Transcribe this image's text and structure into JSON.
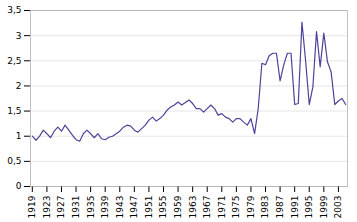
{
  "chart_data": {
    "type": "line",
    "x": [
      1919,
      1920,
      1921,
      1922,
      1923,
      1924,
      1925,
      1926,
      1927,
      1928,
      1929,
      1930,
      1931,
      1932,
      1933,
      1934,
      1935,
      1936,
      1937,
      1938,
      1939,
      1940,
      1941,
      1942,
      1943,
      1944,
      1945,
      1946,
      1947,
      1948,
      1949,
      1950,
      1951,
      1952,
      1953,
      1954,
      1955,
      1956,
      1957,
      1958,
      1959,
      1960,
      1961,
      1962,
      1963,
      1964,
      1965,
      1966,
      1967,
      1968,
      1969,
      1970,
      1971,
      1972,
      1973,
      1974,
      1975,
      1976,
      1977,
      1978,
      1979,
      1980,
      1981,
      1982,
      1983,
      1984,
      1985,
      1986,
      1987,
      1988,
      1989,
      1990,
      1991,
      1992,
      1993,
      1994,
      1995,
      1996,
      1997,
      1998,
      1999,
      2000,
      2001,
      2002,
      2003,
      2004,
      2005
    ],
    "values": [
      1.0,
      0.92,
      1.0,
      1.12,
      1.05,
      0.97,
      1.1,
      1.18,
      1.1,
      1.22,
      1.12,
      1.02,
      0.93,
      0.9,
      1.05,
      1.12,
      1.05,
      0.97,
      1.05,
      0.95,
      0.93,
      0.98,
      1.0,
      1.05,
      1.1,
      1.18,
      1.22,
      1.2,
      1.12,
      1.08,
      1.15,
      1.22,
      1.32,
      1.38,
      1.3,
      1.35,
      1.42,
      1.52,
      1.58,
      1.62,
      1.68,
      1.62,
      1.67,
      1.72,
      1.65,
      1.55,
      1.55,
      1.48,
      1.55,
      1.62,
      1.55,
      1.42,
      1.45,
      1.38,
      1.35,
      1.28,
      1.35,
      1.35,
      1.28,
      1.22,
      1.35,
      1.05,
      1.55,
      2.45,
      2.42,
      2.6,
      2.65,
      2.65,
      2.1,
      2.42,
      2.65,
      2.65,
      1.63,
      1.65,
      3.27,
      2.5,
      1.63,
      1.98,
      3.08,
      2.38,
      3.05,
      2.48,
      2.28,
      1.63,
      1.7,
      1.75,
      1.63
    ],
    "color": "#4b4499",
    "xlim": [
      1918.5,
      2005.5
    ],
    "xticks": [
      1919,
      1923,
      1927,
      1931,
      1935,
      1939,
      1943,
      1947,
      1951,
      1955,
      1959,
      1963,
      1967,
      1971,
      1975,
      1979,
      1983,
      1987,
      1991,
      1995,
      1999,
      2003
    ],
    "ylim": [
      0,
      3.5
    ],
    "yticks": [
      0,
      {
        "value": 0.5,
        "label": "0,5"
      },
      1,
      {
        "value": 1.5,
        "label": "1,5"
      },
      2,
      {
        "value": 2.5,
        "label": "2,5"
      },
      3,
      {
        "value": 3.5,
        "label": "3,5"
      }
    ],
    "grid": true
  }
}
